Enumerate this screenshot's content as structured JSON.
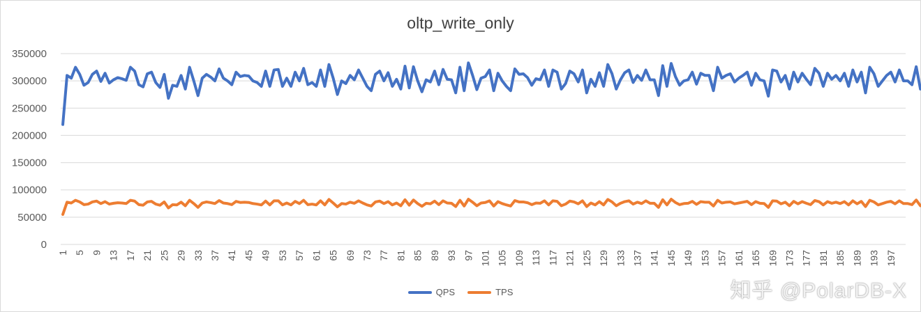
{
  "chart_data": {
    "type": "line",
    "title": "oltp_write_only",
    "xlabel": "",
    "ylabel": "",
    "ylim": [
      0,
      350000
    ],
    "y_ticks": [
      "0",
      "50000",
      "100000",
      "150000",
      "200000",
      "250000",
      "300000",
      "350000"
    ],
    "x_start": 1,
    "x_end": 200,
    "x_tick_labels": [
      "1",
      "5",
      "9",
      "13",
      "17",
      "21",
      "25",
      "29",
      "33",
      "37",
      "41",
      "45",
      "49",
      "53",
      "57",
      "61",
      "65",
      "69",
      "73",
      "77",
      "81",
      "85",
      "89",
      "93",
      "97",
      "101",
      "105",
      "109",
      "113",
      "117",
      "121",
      "125",
      "129",
      "133",
      "137",
      "141",
      "145",
      "149",
      "153",
      "157",
      "161",
      "165",
      "169",
      "173",
      "177",
      "181",
      "185",
      "189",
      "193",
      "197"
    ],
    "grid": "horizontal",
    "legend_position": "bottom",
    "series": [
      {
        "name": "QPS",
        "color": "#4472C4",
        "values": [
          220000,
          310000,
          305000,
          325000,
          312000,
          292000,
          297000,
          312000,
          318000,
          299000,
          314000,
          296000,
          302000,
          306000,
          304000,
          301000,
          325000,
          318000,
          293000,
          289000,
          313000,
          316000,
          297000,
          288000,
          312000,
          268000,
          292000,
          290000,
          310000,
          285000,
          325000,
          300000,
          273000,
          305000,
          312000,
          307000,
          300000,
          322000,
          305000,
          300000,
          293000,
          316000,
          308000,
          310000,
          309000,
          300000,
          297000,
          290000,
          318000,
          290000,
          320000,
          321000,
          290000,
          305000,
          290000,
          316000,
          300000,
          323000,
          293000,
          297000,
          290000,
          320000,
          290000,
          330000,
          305000,
          275000,
          300000,
          295000,
          310000,
          302000,
          320000,
          305000,
          290000,
          282000,
          312000,
          318000,
          300000,
          315000,
          290000,
          303000,
          285000,
          327000,
          287000,
          326000,
          300000,
          280000,
          302000,
          298000,
          318000,
          293000,
          321000,
          303000,
          302000,
          278000,
          325000,
          282000,
          333000,
          310000,
          284000,
          305000,
          308000,
          320000,
          282000,
          314000,
          300000,
          290000,
          282000,
          322000,
          312000,
          313000,
          306000,
          292000,
          304000,
          302000,
          320000,
          290000,
          320000,
          316000,
          285000,
          295000,
          318000,
          313000,
          298000,
          320000,
          278000,
          303000,
          290000,
          315000,
          290000,
          330000,
          313000,
          285000,
          302000,
          315000,
          320000,
          297000,
          310000,
          301000,
          320000,
          302000,
          302000,
          273000,
          328000,
          290000,
          332000,
          308000,
          292000,
          300000,
          302000,
          316000,
          294000,
          314000,
          310000,
          310000,
          282000,
          325000,
          305000,
          310000,
          313000,
          298000,
          305000,
          310000,
          316000,
          292000,
          314000,
          302000,
          300000,
          272000,
          320000,
          318000,
          298000,
          310000,
          285000,
          316000,
          298000,
          314000,
          303000,
          293000,
          323000,
          314000,
          290000,
          314000,
          303000,
          310000,
          300000,
          314000,
          290000,
          320000,
          298000,
          316000,
          278000,
          325000,
          313000,
          290000,
          300000,
          310000,
          316000,
          298000,
          320000,
          300000,
          300000,
          293000,
          326000,
          285000
        ]
      },
      {
        "name": "TPS",
        "color": "#ED7D31",
        "values": [
          55000,
          77500,
          76000,
          81000,
          78000,
          73000,
          74000,
          78000,
          79500,
          75000,
          78500,
          74000,
          75500,
          76500,
          76000,
          75000,
          81000,
          79500,
          73000,
          72000,
          78000,
          79000,
          74000,
          72000,
          78000,
          67000,
          73000,
          72500,
          77500,
          71000,
          81000,
          75000,
          68000,
          76000,
          78000,
          76700,
          75000,
          80500,
          76000,
          75000,
          73000,
          79000,
          77000,
          77500,
          77000,
          75000,
          74000,
          72500,
          79500,
          72500,
          80000,
          80000,
          72500,
          76000,
          72500,
          79000,
          75000,
          81000,
          73000,
          74000,
          72500,
          80000,
          72500,
          82500,
          76000,
          69000,
          75000,
          74000,
          77500,
          75500,
          80000,
          76000,
          72500,
          70500,
          78000,
          79500,
          75000,
          78500,
          72500,
          76000,
          71000,
          82000,
          72000,
          81500,
          75000,
          70000,
          75500,
          74500,
          79500,
          73000,
          80000,
          76000,
          75500,
          69500,
          81000,
          70500,
          83000,
          77500,
          71000,
          76000,
          77000,
          80000,
          70500,
          78500,
          75000,
          72500,
          70500,
          80500,
          78000,
          78000,
          76500,
          73000,
          76000,
          75500,
          80000,
          72500,
          80000,
          79000,
          71000,
          74000,
          79500,
          78000,
          74500,
          80000,
          69500,
          76000,
          72500,
          78500,
          72500,
          82500,
          78000,
          71000,
          75500,
          78500,
          80000,
          74000,
          77500,
          75000,
          80000,
          75500,
          75500,
          68000,
          82000,
          72500,
          83000,
          77000,
          73000,
          75000,
          75500,
          79000,
          73500,
          78500,
          77500,
          77500,
          70500,
          81000,
          76000,
          77500,
          78000,
          74500,
          76000,
          77500,
          79000,
          73000,
          78500,
          75500,
          75000,
          68000,
          80000,
          79500,
          74500,
          77500,
          71000,
          79000,
          74500,
          78500,
          75500,
          73000,
          80500,
          78500,
          72500,
          78500,
          75500,
          77500,
          75000,
          78500,
          72500,
          80000,
          74500,
          79000,
          69500,
          81000,
          78000,
          72500,
          75000,
          77500,
          79000,
          74500,
          80000,
          75000,
          75000,
          73000,
          81500,
          71000
        ]
      }
    ]
  },
  "watermark": {
    "text": "知乎 @PolarDB-X"
  }
}
